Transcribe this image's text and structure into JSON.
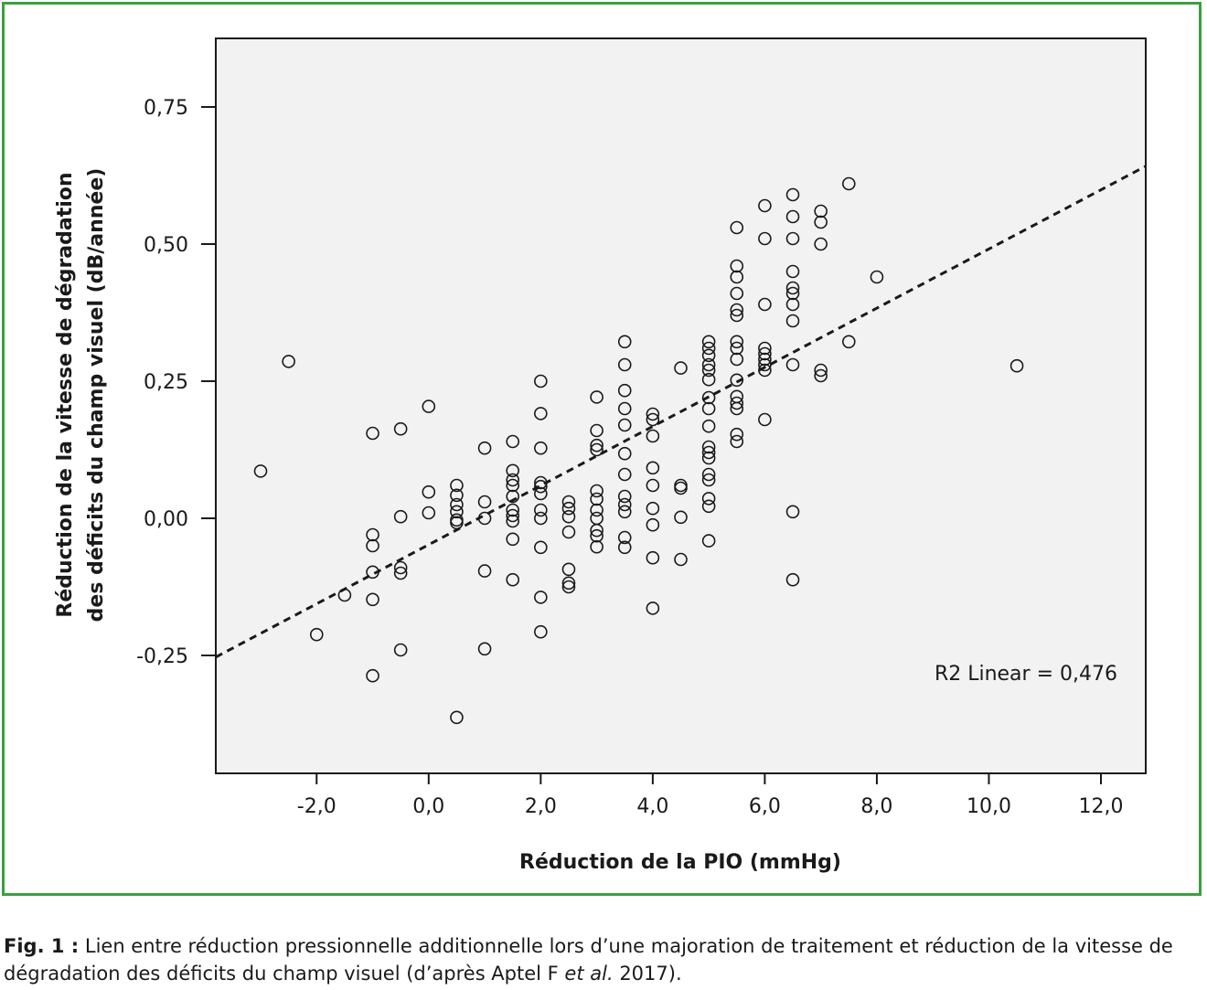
{
  "colors": {
    "frame": "#3aa13e",
    "plot_bg": "#f2f2f2",
    "ink": "#1a1a1a"
  },
  "caption": {
    "label": "Fig. 1 :",
    "text_1": " Lien entre réduction pressionnelle additionnelle lors d’une majoration de traitement et réduction de la vitesse de dégradation des déficits du champ visuel (d’après Aptel F ",
    "italic": "et al.",
    "text_2": " 2017)."
  },
  "chart_data": {
    "type": "scatter",
    "xlabel": "Réduction de la PIO (mmHg)",
    "ylabel_line1": "Réduction de la vitesse de dégradation",
    "ylabel_line2": "des déficits du champ visuel (dB/année)",
    "xlim": [
      -3.8,
      12.8
    ],
    "ylim": [
      -0.465,
      0.875
    ],
    "x_ticks": [
      {
        "value": -2,
        "label": "-2,0"
      },
      {
        "value": 0,
        "label": "0,0"
      },
      {
        "value": 2,
        "label": "2,0"
      },
      {
        "value": 4,
        "label": "4,0"
      },
      {
        "value": 6,
        "label": "6,0"
      },
      {
        "value": 8,
        "label": "8,0"
      },
      {
        "value": 10,
        "label": "10,0"
      },
      {
        "value": 12,
        "label": "12,0"
      }
    ],
    "y_ticks": [
      {
        "value": 0.75,
        "label": "0,75"
      },
      {
        "value": 0.5,
        "label": "0,50"
      },
      {
        "value": 0.25,
        "label": "0,25"
      },
      {
        "value": 0,
        "label": "0,00"
      },
      {
        "value": -0.25,
        "label": "-0,25"
      }
    ],
    "grid": false,
    "fit_line": {
      "style": "dashed",
      "x": [
        -3.8,
        12.8
      ],
      "y": [
        -0.253,
        0.642
      ]
    },
    "annotation": "R2 Linear = 0,476",
    "points": [
      [
        -3,
        0.086
      ],
      [
        -2.5,
        0.286
      ],
      [
        -2,
        -0.212
      ],
      [
        -1.5,
        -0.14
      ],
      [
        -1,
        0.155
      ],
      [
        -1,
        -0.03
      ],
      [
        -1,
        -0.05
      ],
      [
        -1,
        -0.098
      ],
      [
        -1,
        -0.148
      ],
      [
        -1,
        -0.287
      ],
      [
        -0.5,
        0.163
      ],
      [
        -0.5,
        0.003
      ],
      [
        -0.5,
        -0.09
      ],
      [
        -0.5,
        -0.1
      ],
      [
        -0.5,
        -0.24
      ],
      [
        0,
        0.204
      ],
      [
        0,
        0.048
      ],
      [
        0,
        0.01
      ],
      [
        0.5,
        0.06
      ],
      [
        0.5,
        0.042
      ],
      [
        0.5,
        0.025
      ],
      [
        0.5,
        0.012
      ],
      [
        0.5,
        -0.003
      ],
      [
        0.5,
        -0.008
      ],
      [
        0.5,
        -0.363
      ],
      [
        1,
        0.128
      ],
      [
        1,
        0.03
      ],
      [
        1,
        0
      ],
      [
        1,
        -0.096
      ],
      [
        1,
        -0.238
      ],
      [
        1.5,
        0.14
      ],
      [
        1.5,
        0.087
      ],
      [
        1.5,
        0.07
      ],
      [
        1.5,
        0.06
      ],
      [
        1.5,
        0.04
      ],
      [
        1.5,
        0.015
      ],
      [
        1.5,
        0.005
      ],
      [
        1.5,
        -0.005
      ],
      [
        1.5,
        -0.038
      ],
      [
        1.5,
        -0.112
      ],
      [
        2,
        0.25
      ],
      [
        2,
        0.191
      ],
      [
        2,
        0.128
      ],
      [
        2,
        0.065
      ],
      [
        2,
        0.058
      ],
      [
        2,
        0.045
      ],
      [
        2,
        0.015
      ],
      [
        2,
        0
      ],
      [
        2,
        -0.053
      ],
      [
        2,
        -0.144
      ],
      [
        2,
        -0.207
      ],
      [
        2.5,
        0.03
      ],
      [
        2.5,
        0.018
      ],
      [
        2.5,
        0.003
      ],
      [
        2.5,
        -0.025
      ],
      [
        2.5,
        -0.093
      ],
      [
        2.5,
        -0.118
      ],
      [
        2.5,
        -0.125
      ],
      [
        3,
        0.221
      ],
      [
        3,
        0.16
      ],
      [
        3,
        0.133
      ],
      [
        3,
        0.125
      ],
      [
        3,
        0.05
      ],
      [
        3,
        0.035
      ],
      [
        3,
        0.015
      ],
      [
        3,
        0
      ],
      [
        3,
        -0.022
      ],
      [
        3,
        -0.032
      ],
      [
        3,
        -0.052
      ],
      [
        3.5,
        0.322
      ],
      [
        3.5,
        0.28
      ],
      [
        3.5,
        0.233
      ],
      [
        3.5,
        0.2
      ],
      [
        3.5,
        0.17
      ],
      [
        3.5,
        0.118
      ],
      [
        3.5,
        0.08
      ],
      [
        3.5,
        0.04
      ],
      [
        3.5,
        0.025
      ],
      [
        3.5,
        0.012
      ],
      [
        3.5,
        -0.035
      ],
      [
        3.5,
        -0.053
      ],
      [
        4,
        0.19
      ],
      [
        4,
        0.18
      ],
      [
        4,
        0.15
      ],
      [
        4,
        0.092
      ],
      [
        4,
        0.06
      ],
      [
        4,
        0.018
      ],
      [
        4,
        -0.012
      ],
      [
        4,
        -0.072
      ],
      [
        4,
        -0.164
      ],
      [
        4.5,
        0.274
      ],
      [
        4.5,
        0.06
      ],
      [
        4.5,
        0.055
      ],
      [
        4.5,
        0.002
      ],
      [
        4.5,
        -0.075
      ],
      [
        5,
        0.322
      ],
      [
        5,
        0.31
      ],
      [
        5,
        0.297
      ],
      [
        5,
        0.28
      ],
      [
        5,
        0.27
      ],
      [
        5,
        0.253
      ],
      [
        5,
        0.22
      ],
      [
        5,
        0.2
      ],
      [
        5,
        0.168
      ],
      [
        5,
        0.13
      ],
      [
        5,
        0.12
      ],
      [
        5,
        0.11
      ],
      [
        5,
        0.08
      ],
      [
        5,
        0.07
      ],
      [
        5,
        0.036
      ],
      [
        5,
        0.022
      ],
      [
        5,
        -0.041
      ],
      [
        5.5,
        0.53
      ],
      [
        5.5,
        0.46
      ],
      [
        5.5,
        0.44
      ],
      [
        5.5,
        0.41
      ],
      [
        5.5,
        0.38
      ],
      [
        5.5,
        0.37
      ],
      [
        5.5,
        0.322
      ],
      [
        5.5,
        0.31
      ],
      [
        5.5,
        0.29
      ],
      [
        5.5,
        0.252
      ],
      [
        5.5,
        0.222
      ],
      [
        5.5,
        0.21
      ],
      [
        5.5,
        0.2
      ],
      [
        5.5,
        0.153
      ],
      [
        5.5,
        0.14
      ],
      [
        6,
        0.57
      ],
      [
        6,
        0.51
      ],
      [
        6,
        0.39
      ],
      [
        6,
        0.31
      ],
      [
        6,
        0.3
      ],
      [
        6,
        0.29
      ],
      [
        6,
        0.28
      ],
      [
        6,
        0.27
      ],
      [
        6,
        0.18
      ],
      [
        6.5,
        0.59
      ],
      [
        6.5,
        0.55
      ],
      [
        6.5,
        0.51
      ],
      [
        6.5,
        0.45
      ],
      [
        6.5,
        0.42
      ],
      [
        6.5,
        0.41
      ],
      [
        6.5,
        0.39
      ],
      [
        6.5,
        0.36
      ],
      [
        6.5,
        0.28
      ],
      [
        6.5,
        0.012
      ],
      [
        6.5,
        -0.112
      ],
      [
        7,
        0.56
      ],
      [
        7,
        0.54
      ],
      [
        7,
        0.5
      ],
      [
        7,
        0.27
      ],
      [
        7,
        0.26
      ],
      [
        7.5,
        0.61
      ],
      [
        7.5,
        0.322
      ],
      [
        8,
        0.44
      ],
      [
        10.5,
        0.278
      ]
    ]
  }
}
